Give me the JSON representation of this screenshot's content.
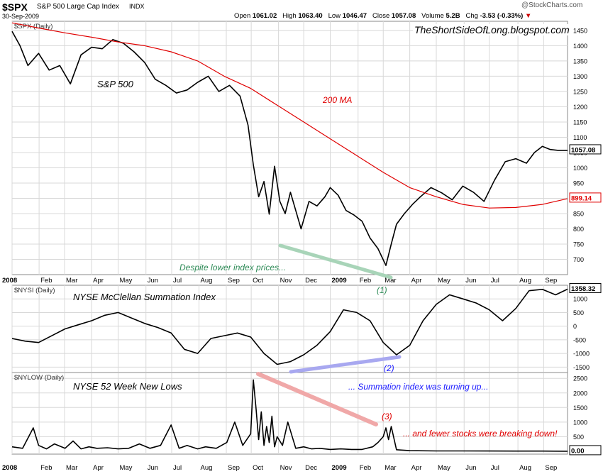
{
  "header": {
    "symbol": "$SPX",
    "name": "S&P 500 Large Cap Index",
    "exchange": "INDX",
    "date": "30-Sep-2009",
    "copyright": "@StockCharts.com",
    "quote": {
      "open_label": "Open",
      "open": "1061.02",
      "high_label": "High",
      "high": "1063.40",
      "low_label": "Low",
      "low": "1046.47",
      "close_label": "Close",
      "close": "1057.08",
      "volume_label": "Volume",
      "volume": "5.2B",
      "chg_label": "Chg",
      "chg": "-3.53 (-0.33%)"
    },
    "watermark": "TheShortSideOfLong.blogspot.com"
  },
  "colors": {
    "price": "#000000",
    "ma": "#e00000",
    "grid": "#d8d8d8",
    "divergence_green": "#a8d4b8",
    "divergence_blue": "#a8a8f0",
    "divergence_red": "#f0a8a8",
    "label_green": "#2e8b57",
    "label_blue": "#1a1aff",
    "label_red": "#e00000"
  },
  "chart_data": [
    {
      "type": "line",
      "panel_label": "$SPX (Daily)",
      "title": "S&P 500",
      "ylim": [
        650,
        1480
      ],
      "yticks": [
        700,
        750,
        800,
        850,
        900,
        950,
        1000,
        1050,
        1100,
        1150,
        1200,
        1250,
        1300,
        1350,
        1400,
        1450
      ],
      "x_labels": [
        "2008",
        "Feb",
        "Mar",
        "Apr",
        "May",
        "Jun",
        "Jul",
        "Aug",
        "Sep",
        "Oct",
        "Nov",
        "Dec",
        "2009",
        "Feb",
        "Mar",
        "Apr",
        "May",
        "Jun",
        "Jul",
        "Aug",
        "Sep"
      ],
      "grid": true,
      "series": [
        {
          "name": "S&P 500",
          "x": [
            0,
            0.3,
            0.6,
            1.0,
            1.4,
            1.8,
            2.2,
            2.6,
            3.0,
            3.4,
            3.8,
            4.2,
            4.6,
            5.0,
            5.4,
            5.8,
            6.2,
            6.6,
            7.0,
            7.4,
            7.8,
            8.2,
            8.6,
            8.9,
            9.1,
            9.3,
            9.5,
            9.7,
            9.9,
            10.1,
            10.3,
            10.5,
            10.7,
            10.9,
            11.2,
            11.5,
            11.8,
            12.0,
            12.3,
            12.6,
            12.9,
            13.2,
            13.5,
            13.8,
            14.1,
            14.3,
            14.5,
            14.8,
            15.1,
            15.4,
            15.8,
            16.2,
            16.6,
            17.0,
            17.4,
            17.8,
            18.2,
            18.6,
            19.0,
            19.4,
            19.7,
            20.0,
            20.3,
            20.6,
            20.95
          ],
          "values": [
            1447,
            1400,
            1335,
            1375,
            1320,
            1335,
            1275,
            1370,
            1395,
            1390,
            1420,
            1408,
            1380,
            1345,
            1290,
            1270,
            1245,
            1255,
            1280,
            1300,
            1250,
            1270,
            1235,
            1140,
            1010,
            905,
            955,
            848,
            1005,
            890,
            850,
            920,
            860,
            800,
            890,
            875,
            905,
            935,
            910,
            860,
            845,
            825,
            770,
            735,
            680,
            750,
            815,
            850,
            880,
            905,
            935,
            918,
            895,
            940,
            920,
            890,
            960,
            1020,
            1030,
            1015,
            1050,
            1070,
            1060,
            1057,
            1057
          ]
        },
        {
          "name": "200 MA",
          "x": [
            0,
            1,
            2,
            3,
            4,
            5,
            6,
            7,
            8,
            9,
            10,
            11,
            12,
            13,
            14,
            15,
            16,
            17,
            18,
            19,
            20,
            20.95
          ],
          "values": [
            1475,
            1458,
            1442,
            1428,
            1412,
            1400,
            1380,
            1350,
            1300,
            1260,
            1205,
            1150,
            1095,
            1040,
            985,
            935,
            905,
            880,
            868,
            870,
            880,
            899
          ]
        }
      ],
      "annotations": [
        "200 MA",
        "Despite lower index prices...",
        "(1)"
      ],
      "last_values": {
        "price": "1057.08",
        "ma": "899.14"
      }
    },
    {
      "type": "line",
      "panel_label": "$NYSI (Daily)",
      "title": "NYSE McClellan Summation Index",
      "ylim": [
        -1700,
        1500
      ],
      "yticks": [
        -1500,
        -1000,
        -500,
        0,
        500,
        1000
      ],
      "grid": true,
      "series": [
        {
          "name": "NYSE McClellan Summation Index",
          "x": [
            0,
            0.5,
            1.0,
            1.5,
            2.0,
            2.5,
            3.0,
            3.5,
            4.0,
            4.5,
            5.0,
            5.5,
            6.0,
            6.5,
            7.0,
            7.5,
            8.0,
            8.5,
            9.0,
            9.5,
            10.0,
            10.5,
            11.0,
            11.5,
            12.0,
            12.5,
            13.0,
            13.5,
            14.0,
            14.5,
            15.0,
            15.5,
            16.0,
            16.5,
            17.0,
            17.5,
            18.0,
            18.5,
            19.0,
            19.5,
            20.0,
            20.5,
            20.95
          ],
          "values": [
            -450,
            -550,
            -600,
            -350,
            -100,
            50,
            200,
            400,
            500,
            300,
            100,
            -50,
            -250,
            -850,
            -1000,
            -450,
            -350,
            -250,
            -400,
            -1000,
            -1400,
            -1300,
            -1050,
            -700,
            -200,
            600,
            500,
            200,
            -600,
            -1050,
            -700,
            200,
            800,
            1150,
            1000,
            850,
            600,
            200,
            650,
            1300,
            1350,
            1150,
            1358
          ]
        }
      ],
      "annotations": [
        "(2)"
      ],
      "last_values": {
        "value": "1358.32"
      }
    },
    {
      "type": "line",
      "panel_label": "$NYLOW (Daily)",
      "title": "NYSE 52 Week New Lows",
      "ylim": [
        -100,
        2700
      ],
      "yticks": [
        500,
        1000,
        1500,
        2000,
        2500
      ],
      "grid": true,
      "series": [
        {
          "name": "NYSE 52 Week New Lows",
          "x": [
            0,
            0.4,
            0.8,
            1.0,
            1.3,
            1.6,
            2.0,
            2.3,
            2.6,
            2.9,
            3.2,
            3.6,
            4.0,
            4.4,
            4.8,
            5.2,
            5.6,
            6.0,
            6.3,
            6.6,
            7.0,
            7.3,
            7.7,
            8.1,
            8.4,
            8.7,
            9.0,
            9.1,
            9.2,
            9.3,
            9.4,
            9.5,
            9.6,
            9.7,
            9.8,
            9.9,
            10.0,
            10.2,
            10.4,
            10.7,
            11.0,
            11.3,
            11.6,
            12.0,
            12.4,
            12.8,
            13.2,
            13.6,
            13.8,
            14.0,
            14.1,
            14.2,
            14.3,
            14.5,
            15.0,
            16.0,
            17.0,
            18.0,
            19.0,
            20.0,
            20.95
          ],
          "values": [
            150,
            100,
            800,
            200,
            80,
            250,
            100,
            350,
            80,
            150,
            100,
            120,
            80,
            100,
            250,
            100,
            200,
            900,
            100,
            200,
            80,
            150,
            100,
            300,
            1000,
            200,
            600,
            2450,
            1500,
            400,
            1350,
            200,
            850,
            300,
            1200,
            150,
            500,
            200,
            1000,
            100,
            150,
            80,
            100,
            60,
            80,
            60,
            60,
            150,
            300,
            500,
            800,
            400,
            850,
            50,
            20,
            10,
            10,
            8,
            5,
            5,
            0
          ]
        }
      ],
      "annotations": [
        "... Summation index was turning up...",
        "(3)",
        "... and fewer stocks were breaking down!"
      ],
      "last_values": {
        "value": "0.00"
      }
    }
  ]
}
